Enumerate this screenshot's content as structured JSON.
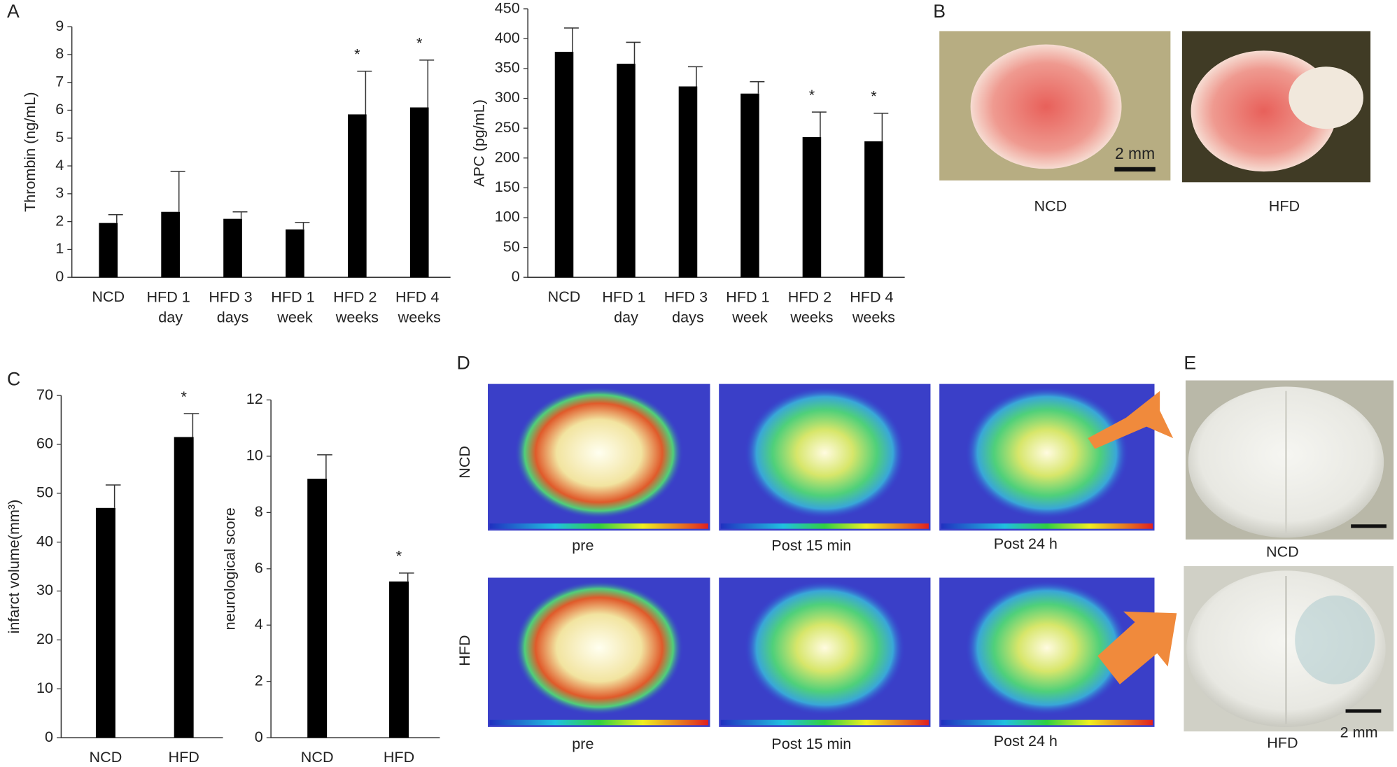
{
  "chart_data": [
    {
      "type": "bar",
      "y_label": "Thrombin (ng/mL)",
      "categories": [
        "NCD",
        "HFD 1 day",
        "HFD 3 days",
        "HFD 1 week",
        "HFD 2 weeks",
        "HFD 4 weeks"
      ],
      "values": [
        1.95,
        2.35,
        2.1,
        1.72,
        5.85,
        6.1
      ],
      "errors": [
        0.3,
        1.45,
        0.25,
        0.25,
        1.55,
        1.7
      ],
      "color": "#000000",
      "ylim": [
        0,
        9
      ],
      "yticks": [
        0,
        1,
        2,
        3,
        4,
        5,
        6,
        7,
        8,
        9
      ],
      "annotations": [
        {
          "index": 4,
          "text": "*"
        },
        {
          "index": 5,
          "text": "*"
        }
      ]
    },
    {
      "type": "bar",
      "y_label": "APC (pg/mL)",
      "categories": [
        "NCD",
        "HFD 1 day",
        "HFD 3 days",
        "HFD 1 week",
        "HFD 2 weeks",
        "HFD 4 weeks"
      ],
      "values": [
        378,
        358,
        320,
        308,
        235,
        228
      ],
      "errors": [
        40,
        36,
        33,
        20,
        42,
        47
      ],
      "color": "#000000",
      "ylim": [
        0,
        450
      ],
      "yticks": [
        0,
        50,
        100,
        150,
        200,
        250,
        300,
        350,
        400,
        450
      ],
      "annotations": [
        {
          "index": 4,
          "text": "*"
        },
        {
          "index": 5,
          "text": "*"
        }
      ]
    },
    {
      "type": "bar",
      "y_label": "infarct volume(mm³)",
      "categories": [
        "NCD",
        "HFD"
      ],
      "values": [
        47,
        61.5
      ],
      "errors": [
        4.7,
        4.8
      ],
      "color": "#000000",
      "ylim": [
        0,
        70
      ],
      "yticks": [
        0,
        10,
        20,
        30,
        40,
        50,
        60,
        70
      ],
      "annotations": [
        {
          "index": 1,
          "text": "*"
        }
      ]
    },
    {
      "type": "bar",
      "y_label": "neurological score",
      "categories": [
        "NCD",
        "HFD"
      ],
      "values": [
        9.2,
        5.55
      ],
      "errors": [
        0.85,
        0.3
      ],
      "color": "#000000",
      "ylim": [
        0,
        12
      ],
      "yticks": [
        0,
        2,
        4,
        6,
        8,
        10,
        12
      ],
      "annotations": [
        {
          "index": 1,
          "text": "*"
        }
      ]
    }
  ],
  "panels": [
    "A",
    "B",
    "C",
    "D",
    "E"
  ],
  "panel_b": {
    "captions": [
      "NCD",
      "HFD"
    ],
    "scale_bar": "2 mm"
  },
  "panel_d": {
    "rows": [
      "NCD",
      "HFD"
    ],
    "columns": [
      "pre",
      "Post 15 min",
      "Post 24 h"
    ]
  },
  "panel_e": {
    "captions": [
      "NCD",
      "HFD"
    ],
    "scale_bar": "2 mm"
  }
}
